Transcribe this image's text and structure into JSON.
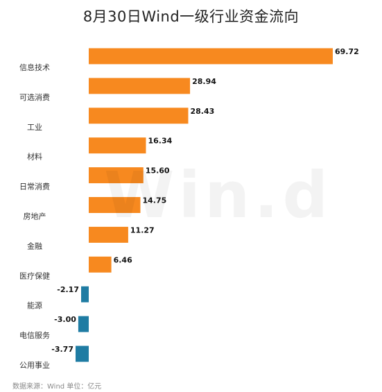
{
  "chart_data": {
    "type": "bar",
    "orientation": "horizontal",
    "title": "8月30日Wind一级行业资金流向",
    "categories": [
      "信息技术",
      "可选消费",
      "工业",
      "材料",
      "日常消费",
      "房地产",
      "金融",
      "医疗保健",
      "能源",
      "电信服务",
      "公用事业"
    ],
    "values": [
      69.72,
      28.94,
      28.43,
      16.34,
      15.6,
      14.75,
      11.27,
      6.46,
      -2.17,
      -3.0,
      -3.77
    ],
    "value_labels": [
      "69.72",
      "28.94",
      "28.43",
      "16.34",
      "15.60",
      "14.75",
      "11.27",
      "6.46",
      "-2.17",
      "-3.00",
      "-3.77"
    ],
    "xlabel": "",
    "ylabel": "",
    "grid": false,
    "legend": "none",
    "colors": {
      "positive": "#F7891F",
      "negative": "#1F7CA3"
    }
  },
  "watermark": "Win.d",
  "source": "数据来源：Wind 单位：亿元"
}
